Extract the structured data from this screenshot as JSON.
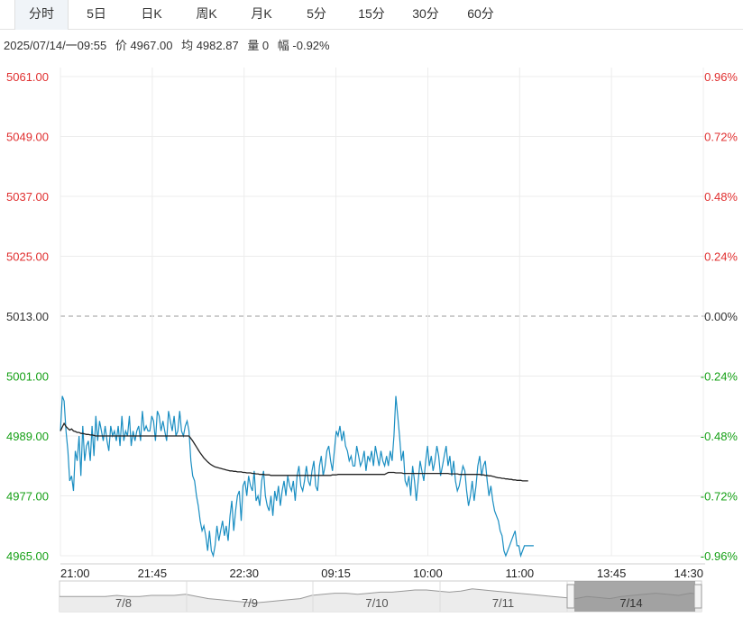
{
  "tabs": [
    {
      "label": "分时",
      "active": true
    },
    {
      "label": "5日",
      "active": false
    },
    {
      "label": "日K",
      "active": false
    },
    {
      "label": "周K",
      "active": false
    },
    {
      "label": "月K",
      "active": false
    },
    {
      "label": "5分",
      "active": false
    },
    {
      "label": "15分",
      "active": false
    },
    {
      "label": "30分",
      "active": false
    },
    {
      "label": "60分",
      "active": false
    }
  ],
  "info": {
    "datetime": "2025/07/14/一09:55",
    "price": "价 4967.00",
    "avg": "均 4982.87",
    "volume": "量 0",
    "change": "幅 -0.92%"
  },
  "colors": {
    "up": "#e03030",
    "down": "#16a016",
    "neutral": "#333333",
    "price_line": "#1a8ec2",
    "avg_line": "#222222"
  },
  "chart_data": {
    "type": "line",
    "base_price": 5013.0,
    "ylim": [
      4965.0,
      5061.0
    ],
    "y_ticks": [
      {
        "value": 5061.0,
        "label": "5061.00",
        "pct": "0.96%"
      },
      {
        "value": 5049.0,
        "label": "5049.00",
        "pct": "0.72%"
      },
      {
        "value": 5037.0,
        "label": "5037.00",
        "pct": "0.48%"
      },
      {
        "value": 5025.0,
        "label": "5025.00",
        "pct": "0.24%"
      },
      {
        "value": 5013.0,
        "label": "5013.00",
        "pct": "0.00%"
      },
      {
        "value": 5001.0,
        "label": "5001.00",
        "pct": "-0.24%"
      },
      {
        "value": 4989.0,
        "label": "4989.00",
        "pct": "-0.48%"
      },
      {
        "value": 4977.0,
        "label": "4977.00",
        "pct": "-0.72%"
      },
      {
        "value": 4965.0,
        "label": "4965.00",
        "pct": "-0.96%"
      }
    ],
    "x_ticks": [
      "21:00",
      "21:45",
      "22:30",
      "09:15",
      "10:00",
      "11:00",
      "13:45",
      "14:30"
    ],
    "total_minutes": 345,
    "price_series": [
      4990,
      4997,
      4996,
      4990,
      4986,
      4980,
      4981,
      4978,
      4986,
      4984,
      4989,
      4981,
      4991,
      4984,
      4987,
      4988,
      4984,
      4991,
      4985,
      4993,
      4988,
      4992,
      4990,
      4988,
      4991,
      4988,
      4986,
      4991,
      4989,
      4990,
      4988,
      4991,
      4987,
      4993,
      4988,
      4990,
      4989,
      4993,
      4987,
      4990,
      4988,
      4990,
      4991,
      4988,
      4994,
      4990,
      4991,
      4990,
      4990,
      4993,
      4992,
      4988,
      4994,
      4993,
      4990,
      4992,
      4990,
      4988,
      4994,
      4992,
      4990,
      4993,
      4989,
      4990,
      4994,
      4990,
      4989,
      4991,
      4992,
      4990,
      4984,
      4981,
      4980,
      4977,
      4975,
      4972,
      4970,
      4971,
      4969,
      4966,
      4970,
      4966,
      4965,
      4967,
      4971,
      4968,
      4970,
      4972,
      4969,
      4971,
      4968,
      4973,
      4976,
      4970,
      4974,
      4977,
      4978,
      4972,
      4979,
      4980,
      4977,
      4981,
      4979,
      4978,
      4982,
      4976,
      4977,
      4975,
      4980,
      4982,
      4977,
      4975,
      4974,
      4977,
      4973,
      4978,
      4976,
      4979,
      4975,
      4978,
      4980,
      4977,
      4981,
      4979,
      4978,
      4980,
      4976,
      4981,
      4983,
      4979,
      4978,
      4980,
      4983,
      4980,
      4979,
      4982,
      4984,
      4979,
      4978,
      4983,
      4985,
      4981,
      4983,
      4986,
      4987,
      4984,
      4982,
      4986,
      4990,
      4989,
      4991,
      4988,
      4990,
      4987,
      4986,
      4984,
      4985,
      4983,
      4983,
      4987,
      4985,
      4983,
      4984,
      4986,
      4982,
      4985,
      4984,
      4986,
      4983,
      4987,
      4985,
      4983,
      4986,
      4984,
      4983,
      4985,
      4983,
      4986,
      4984,
      4989,
      4997,
      4993,
      4989,
      4984,
      4986,
      4980,
      4979,
      4981,
      4977,
      4983,
      4980,
      4976,
      4980,
      4984,
      4982,
      4980,
      4984,
      4987,
      4983,
      4985,
      4982,
      4984,
      4987,
      4985,
      4981,
      4983,
      4985,
      4987,
      4983,
      4985,
      4981,
      4984,
      4980,
      4978,
      4979,
      4981,
      4983,
      4982,
      4978,
      4975,
      4977,
      4980,
      4976,
      4979,
      4983,
      4985,
      4981,
      4983,
      4984,
      4980,
      4977,
      4979,
      4976,
      4974,
      4973,
      4972,
      4970,
      4969,
      4966,
      4965,
      4966,
      4967,
      4968,
      4969,
      4970,
      4967,
      4967,
      4965,
      4966,
      4967,
      4967,
      4967,
      4967,
      4967,
      4967
    ],
    "avg_series": [
      4990,
      4990.8,
      4991.5,
      4990.9,
      4990.5,
      4990.2,
      4990.4,
      4990,
      4989.9,
      4989.7,
      4989.7,
      4989.5,
      4989.5,
      4989.4,
      4989.3,
      4989.3,
      4989.2,
      4989.2,
      4989.1,
      4989,
      4989,
      4989,
      4989,
      4989,
      4989,
      4989,
      4989,
      4989,
      4989,
      4989,
      4989,
      4989,
      4989,
      4989,
      4989,
      4989,
      4989,
      4989,
      4989,
      4989,
      4989,
      4989,
      4989,
      4989,
      4989,
      4989,
      4989,
      4989,
      4989,
      4989,
      4989,
      4989,
      4989,
      4989,
      4989,
      4989,
      4989,
      4989,
      4989,
      4989,
      4989,
      4989,
      4989,
      4989,
      4989,
      4989,
      4989,
      4989,
      4989,
      4989,
      4988.5,
      4988,
      4987.4,
      4986.8,
      4986.2,
      4985.6,
      4985.1,
      4984.6,
      4984.2,
      4983.8,
      4983.5,
      4983.2,
      4983,
      4982.8,
      4982.7,
      4982.6,
      4982.5,
      4982.4,
      4982.3,
      4982.2,
      4982.1,
      4982,
      4982,
      4981.9,
      4981.9,
      4981.8,
      4981.8,
      4981.8,
      4981.7,
      4981.7,
      4981.6,
      4981.6,
      4981.6,
      4981.5,
      4981.5,
      4981.4,
      4981.4,
      4981.3,
      4981.3,
      4981.3,
      4981.2,
      4981.2,
      4981.2,
      4981.1,
      4981.1,
      4981.1,
      4981.1,
      4981.1,
      4981.1,
      4981.1,
      4981.1,
      4981.1,
      4981.1,
      4981.1,
      4981.1,
      4981.1,
      4981.1,
      4981.1,
      4981.1,
      4981.1,
      4981.1,
      4981.1,
      4981.1,
      4981.1,
      4981.1,
      4981.1,
      4981.1,
      4981.1,
      4981.1,
      4981.1,
      4981.1,
      4981.1,
      4981.1,
      4981.1,
      4981.1,
      4981.1,
      4981.2,
      4981.2,
      4981.2,
      4981.3,
      4981.3,
      4981.3,
      4981.3,
      4981.3,
      4981.3,
      4981.3,
      4981.3,
      4981.3,
      4981.3,
      4981.3,
      4981.3,
      4981.3,
      4981.3,
      4981.3,
      4981.3,
      4981.3,
      4981.3,
      4981.3,
      4981.3,
      4981.3,
      4981.3,
      4981.3,
      4981.3,
      4981.3,
      4981.3,
      4981.5,
      4981.7,
      4981.7,
      4981.7,
      4981.7,
      4981.6,
      4981.6,
      4981.6,
      4981.6,
      4981.5,
      4981.5,
      4981.5,
      4981.5,
      4981.5,
      4981.5,
      4981.5,
      4981.5,
      4981.5,
      4981.5,
      4981.5,
      4981.5,
      4981.5,
      4981.5,
      4981.5,
      4981.5,
      4981.5,
      4981.5,
      4981.5,
      4981.5,
      4981.5,
      4981.5,
      4981.5,
      4981.5,
      4981.5,
      4981.4,
      4981.4,
      4981.4,
      4981.4,
      4981.4,
      4981.3,
      4981.3,
      4981.3,
      4981.3,
      4981.3,
      4981.3,
      4981.3,
      4981.3,
      4981.3,
      4981.3,
      4981.3,
      4981.3,
      4981.2,
      4981.2,
      4981.1,
      4981.1,
      4981,
      4981,
      4980.9,
      4980.8,
      4980.7,
      4980.6,
      4980.6,
      4980.5,
      4980.5,
      4980.4,
      4980.4,
      4980.3,
      4980.3,
      4980.2,
      4980.2,
      4980.1,
      4980.1,
      4980.1,
      4980,
      4980,
      4980,
      4980
    ]
  },
  "navigator": {
    "dates": [
      "7/8",
      "7/9",
      "7/10",
      "7/11",
      "7/14"
    ],
    "series": [
      0.45,
      0.45,
      0.45,
      0.45,
      0.45,
      0.5,
      0.45,
      0.45,
      0.5,
      0.5,
      0.5,
      0.55,
      0.45,
      0.35,
      0.3,
      0.25,
      0.2,
      0.15,
      0.2,
      0.25,
      0.3,
      0.35,
      0.5,
      0.55,
      0.6,
      0.6,
      0.55,
      0.6,
      0.65,
      0.65,
      0.7,
      0.75,
      0.75,
      0.7,
      0.65,
      0.7,
      0.8,
      0.75,
      0.7,
      0.65,
      0.6,
      0.55,
      0.5,
      0.45,
      0.4,
      0.35,
      0.45,
      0.4,
      0.35,
      0.45,
      0.5,
      0.55,
      0.6,
      0.55,
      0.5,
      0.6,
      0.55
    ]
  }
}
